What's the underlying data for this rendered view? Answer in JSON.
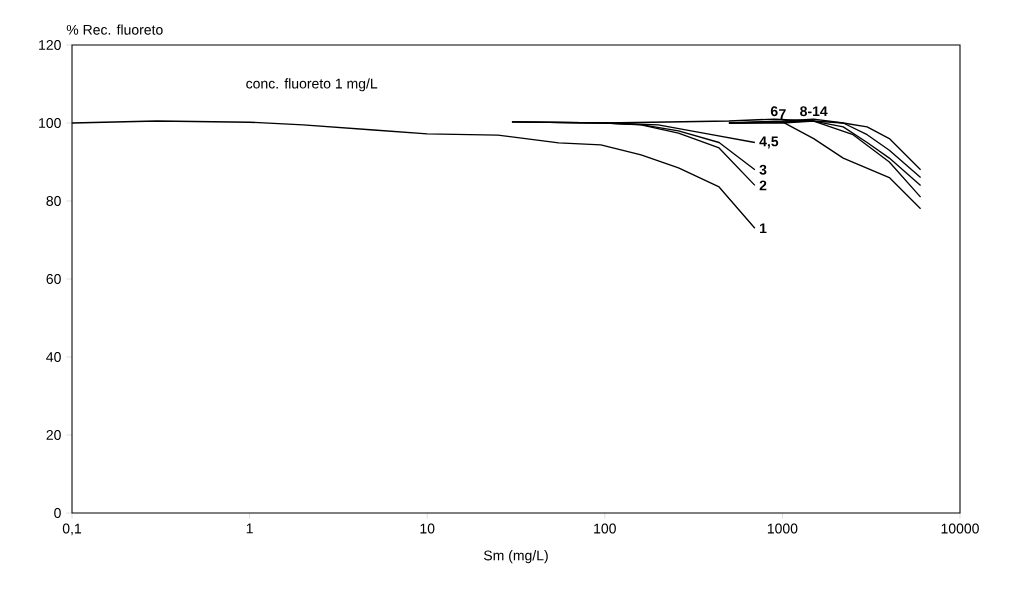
{
  "chart_data": {
    "type": "line",
    "xlabel": "Sm (mg/L)",
    "ylabel": "% Rec. fluoreto",
    "annotations": [
      "conc. fluoreto  1 mg/L"
    ],
    "log": "x",
    "xlim": [
      0.1,
      10000
    ],
    "ylim": [
      0,
      120
    ],
    "xticks": [
      {
        "value": 0.1,
        "label": "0,1"
      },
      1,
      10,
      100,
      1000,
      10000
    ],
    "yticks": [
      0,
      20,
      40,
      60,
      80,
      100,
      120
    ],
    "grid": false,
    "legend": false,
    "marker": "none",
    "line_style": "solid",
    "series": [
      {
        "name": "1",
        "color": "#000000",
        "x": [
          0.1,
          0.3,
          1,
          2,
          5,
          10,
          25,
          55,
          95,
          160,
          260,
          440,
          700
        ],
        "values": [
          100,
          100.5,
          100.2,
          99.5,
          98.2,
          97.2,
          96.9,
          94.9,
          94.4,
          91.8,
          88.5,
          83.6,
          73
        ]
      },
      {
        "name": "2",
        "color": "#000000",
        "x": [
          30,
          100,
          160,
          260,
          440,
          700
        ],
        "values": [
          100.3,
          100,
          99.5,
          97.4,
          93.6,
          84
        ]
      },
      {
        "name": "3",
        "color": "#000000",
        "x": [
          30,
          100,
          160,
          260,
          440,
          700
        ],
        "values": [
          100.3,
          100,
          99.6,
          98,
          95,
          88
        ]
      },
      {
        "name": "4,5",
        "color": "#000000",
        "x": [
          30,
          100,
          200,
          400,
          700
        ],
        "values": [
          100.3,
          100,
          99.5,
          97,
          95
        ]
      },
      {
        "name": "6",
        "color": "#000000",
        "x": [
          100,
          500,
          900,
          1500,
          2500,
          4000,
          6000
        ],
        "values": [
          100,
          100.5,
          101,
          100.5,
          97,
          90,
          81
        ]
      },
      {
        "name": "7",
        "color": "#000000",
        "x": [
          500,
          1000,
          1500,
          2200,
          4000,
          6000
        ],
        "values": [
          100,
          100.3,
          96,
          91,
          86,
          78
        ]
      },
      {
        "name": "8-14",
        "color": "#000000",
        "x": [
          500,
          1000,
          1500,
          2200,
          3000,
          4000,
          6000
        ],
        "values": [
          100,
          100.5,
          101,
          100,
          97,
          93,
          86
        ]
      },
      {
        "color": "#000000",
        "x": [
          500,
          1000,
          1500,
          2200,
          3000,
          4000,
          6000
        ],
        "values": [
          100,
          100,
          100.5,
          100,
          99,
          96,
          88
        ]
      },
      {
        "color": "#000000",
        "x": [
          500,
          1000,
          1500,
          2200,
          3000,
          4000,
          6000
        ],
        "values": [
          100,
          100.3,
          100.5,
          99,
          95,
          91,
          84
        ]
      }
    ]
  }
}
